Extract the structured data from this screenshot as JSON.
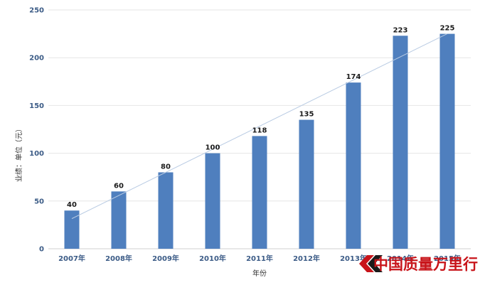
{
  "chart_data": {
    "type": "bar",
    "categories": [
      "2007年",
      "2008年",
      "2009年",
      "2010年",
      "2011年",
      "2012年",
      "2013年",
      "2014年",
      "2015年"
    ],
    "values": [
      40,
      60,
      80,
      100,
      118,
      135,
      174,
      223,
      225
    ],
    "ylabel": "业绩：单位（元）",
    "xlabel": "年份",
    "ylim": [
      0,
      250
    ],
    "yticks": [
      0,
      50,
      100,
      150,
      200,
      250
    ],
    "grid": true,
    "trendline": true,
    "colors": {
      "bar": "#4f7fbe",
      "grid": "#e6e6e6",
      "trend": "#b9cbe3",
      "tick": "#3b5b86"
    }
  },
  "watermark": {
    "text": "中国质量万里行",
    "color": "#c8141a"
  }
}
